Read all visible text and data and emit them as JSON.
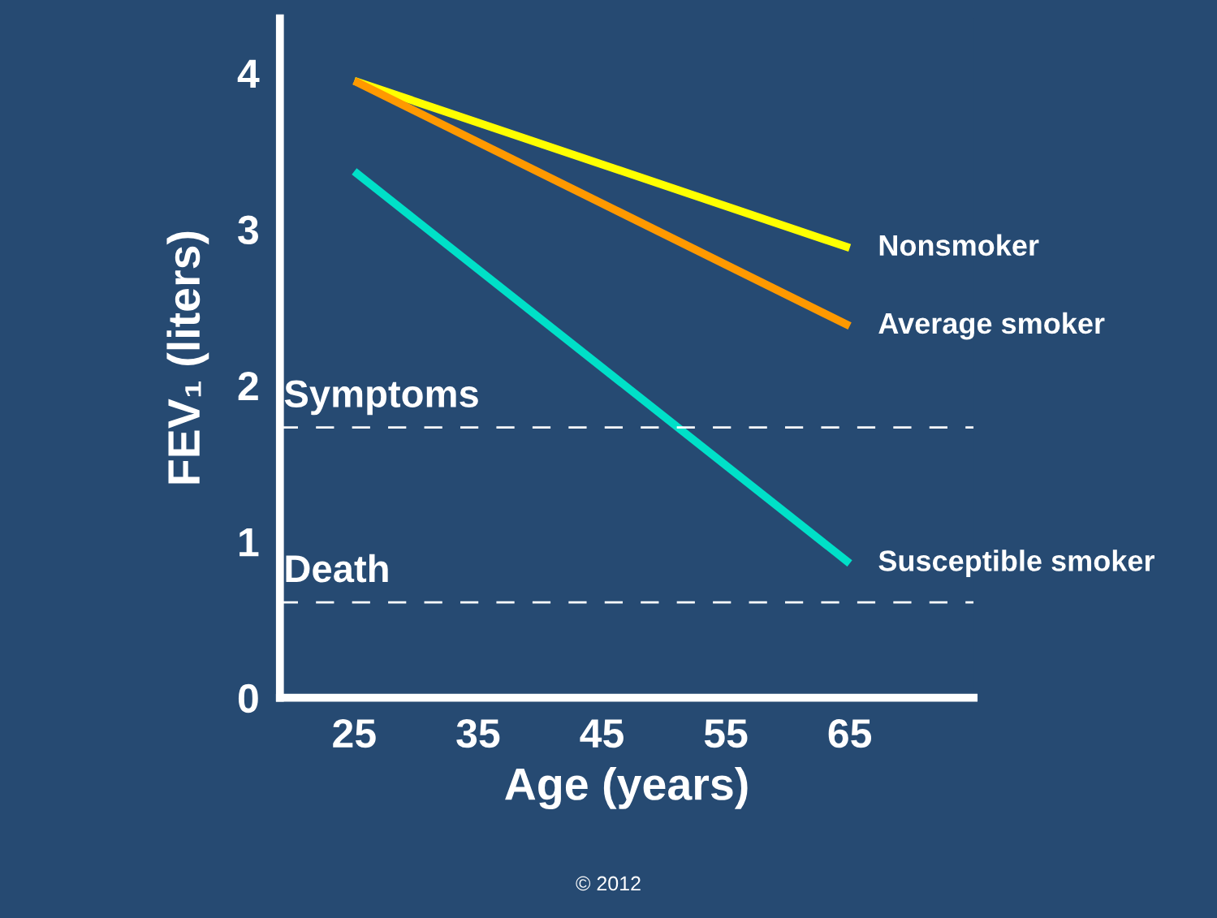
{
  "chart_data": {
    "type": "line",
    "xlabel": "Age (years)",
    "ylabel": "FEV₁ (liters)",
    "x": [
      25,
      65
    ],
    "series": [
      {
        "name": "Nonsmoker",
        "color": "#ffff00",
        "values": [
          3.95,
          2.88
        ]
      },
      {
        "name": "Average smoker",
        "color": "#ff9900",
        "values": [
          3.95,
          2.38
        ]
      },
      {
        "name": "Susceptible smoker",
        "color": "#00e0c8",
        "values": [
          3.37,
          0.86
        ]
      }
    ],
    "xlim": [
      19,
      75
    ],
    "ylim": [
      0,
      4.35
    ],
    "xticks": [
      25,
      35,
      45,
      55,
      65
    ],
    "yticks": [
      0,
      1,
      2,
      3,
      4
    ],
    "ref_lines": [
      {
        "axis": "y",
        "value": 1.73,
        "label": "Symptoms",
        "color": "#ffffff",
        "line_style": "dashed"
      },
      {
        "axis": "y",
        "value": 0.61,
        "label": "Death",
        "color": "#ffffff",
        "line_style": "dashed"
      }
    ],
    "annotations": [
      "© 2012"
    ],
    "grid": false,
    "legend": false,
    "marker": "none",
    "line_style": "solid"
  }
}
